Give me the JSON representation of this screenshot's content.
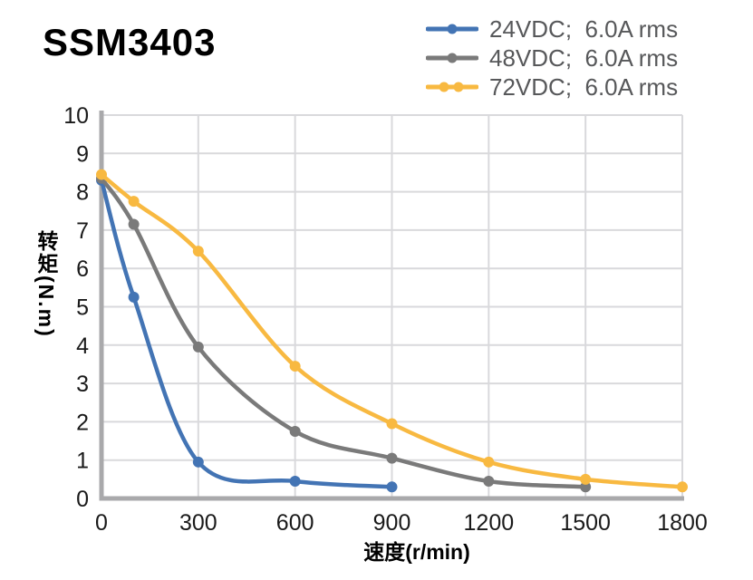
{
  "page": {
    "title": "SSM3403"
  },
  "legend": {
    "items": [
      {
        "label": "24VDC;  6.0A rms",
        "color": "#4374b4"
      },
      {
        "label": "48VDC;  6.0A rms",
        "color": "#7a7a7a"
      },
      {
        "label": "72VDC;  6.0A rms",
        "color": "#f8b941"
      }
    ]
  },
  "axes": {
    "xlabel": "速度(r/min)",
    "ylabel": "转矩(N.m)"
  },
  "chart_data": {
    "type": "line",
    "title": "SSM3403",
    "xlabel": "速度(r/min)",
    "ylabel": "转矩(N.m)",
    "xlim": [
      0,
      1800
    ],
    "ylim": [
      0,
      10
    ],
    "xticks": [
      0,
      300,
      600,
      900,
      1200,
      1500,
      1800
    ],
    "yticks": [
      0,
      1,
      2,
      3,
      4,
      5,
      6,
      7,
      8,
      9,
      10
    ],
    "grid": true,
    "legend_position": "top-right",
    "series": [
      {
        "name": "24VDC; 6.0A rms",
        "color": "#4374b4",
        "x": [
          0,
          100,
          300,
          600,
          900
        ],
        "y": [
          8.3,
          5.25,
          0.95,
          0.45,
          0.3
        ]
      },
      {
        "name": "48VDC; 6.0A rms",
        "color": "#7a7a7a",
        "x": [
          0,
          100,
          300,
          600,
          900,
          1200,
          1500
        ],
        "y": [
          8.35,
          7.15,
          3.95,
          1.75,
          1.05,
          0.45,
          0.3
        ]
      },
      {
        "name": "72VDC; 6.0A rms",
        "color": "#f8b941",
        "x": [
          0,
          100,
          300,
          600,
          900,
          1200,
          1500,
          1800
        ],
        "y": [
          8.45,
          7.75,
          6.45,
          3.45,
          1.95,
          0.95,
          0.5,
          0.3
        ]
      }
    ]
  },
  "style": {
    "axis_color": "#a9a9ab",
    "grid_color": "#d9d9dc",
    "tick_color": "#1a1a1a"
  }
}
